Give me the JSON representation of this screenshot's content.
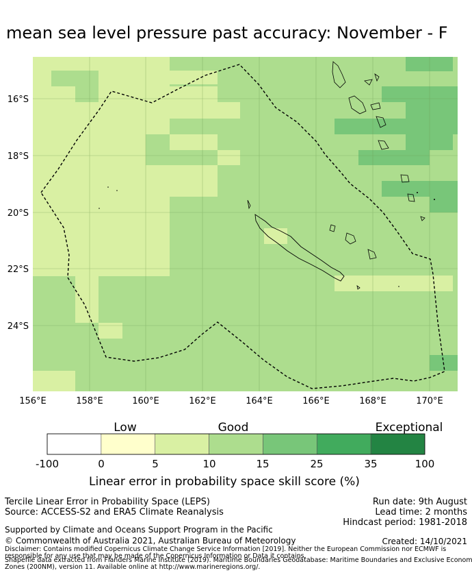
{
  "title": "mean sea level pressure past accuracy: November - F",
  "map": {
    "y_ticks": [
      "16°S",
      "18°S",
      "20°S",
      "22°S",
      "24°S"
    ],
    "x_ticks": [
      "156°E",
      "158°E",
      "160°E",
      "162°E",
      "164°E",
      "166°E",
      "168°E",
      "170°E"
    ],
    "lon_range": [
      156,
      171
    ],
    "lat_range": [
      -26.2,
      -14.7
    ]
  },
  "colorbar": {
    "categories": [
      "Low",
      "Good",
      "Exceptional"
    ],
    "ticks": [
      "-100",
      "0",
      "5",
      "10",
      "15",
      "25",
      "35",
      "100"
    ],
    "colors": [
      "#ffffff",
      "#ffffcc",
      "#d9f0a3",
      "#addd8e",
      "#78c679",
      "#41ab5d",
      "#238443"
    ],
    "title": "Linear error in probability space skill score (%)"
  },
  "footer": {
    "line1": "Tercile Linear Error in Probability Space (LEPS)",
    "line2": "Source: ACCESS-S2 and ERA5 Climate Reanalysis",
    "run_date": "Run date: 9th August",
    "lead_time": "Lead time: 2 months",
    "hindcast": "Hindcast period: 1981-2018",
    "support": "Supported by Climate and Oceans Support Program in the Pacific",
    "copyright": "© Commonwealth of Australia 2021, Australian Bureau of Meteorology",
    "created": "Created: 14/10/2021",
    "disclaimer1": "Disclaimer: Contains modified Copernicus Climate Change Service Information [2019]. Neither the European Commission nor ECMWF is",
    "disclaimer2": "responsible for any use that may be made of the Copernicus Information or Data it contains.",
    "disclaimer3": "Shapefile data extracted from Flanders Marine Institute (2019). Maritime Boundaries Geodatabase: Maritime Boundaries and Exclusive Economic",
    "disclaimer4": "Zones (200NM), version 11. Available online at http://www.marineregions.org/."
  }
}
